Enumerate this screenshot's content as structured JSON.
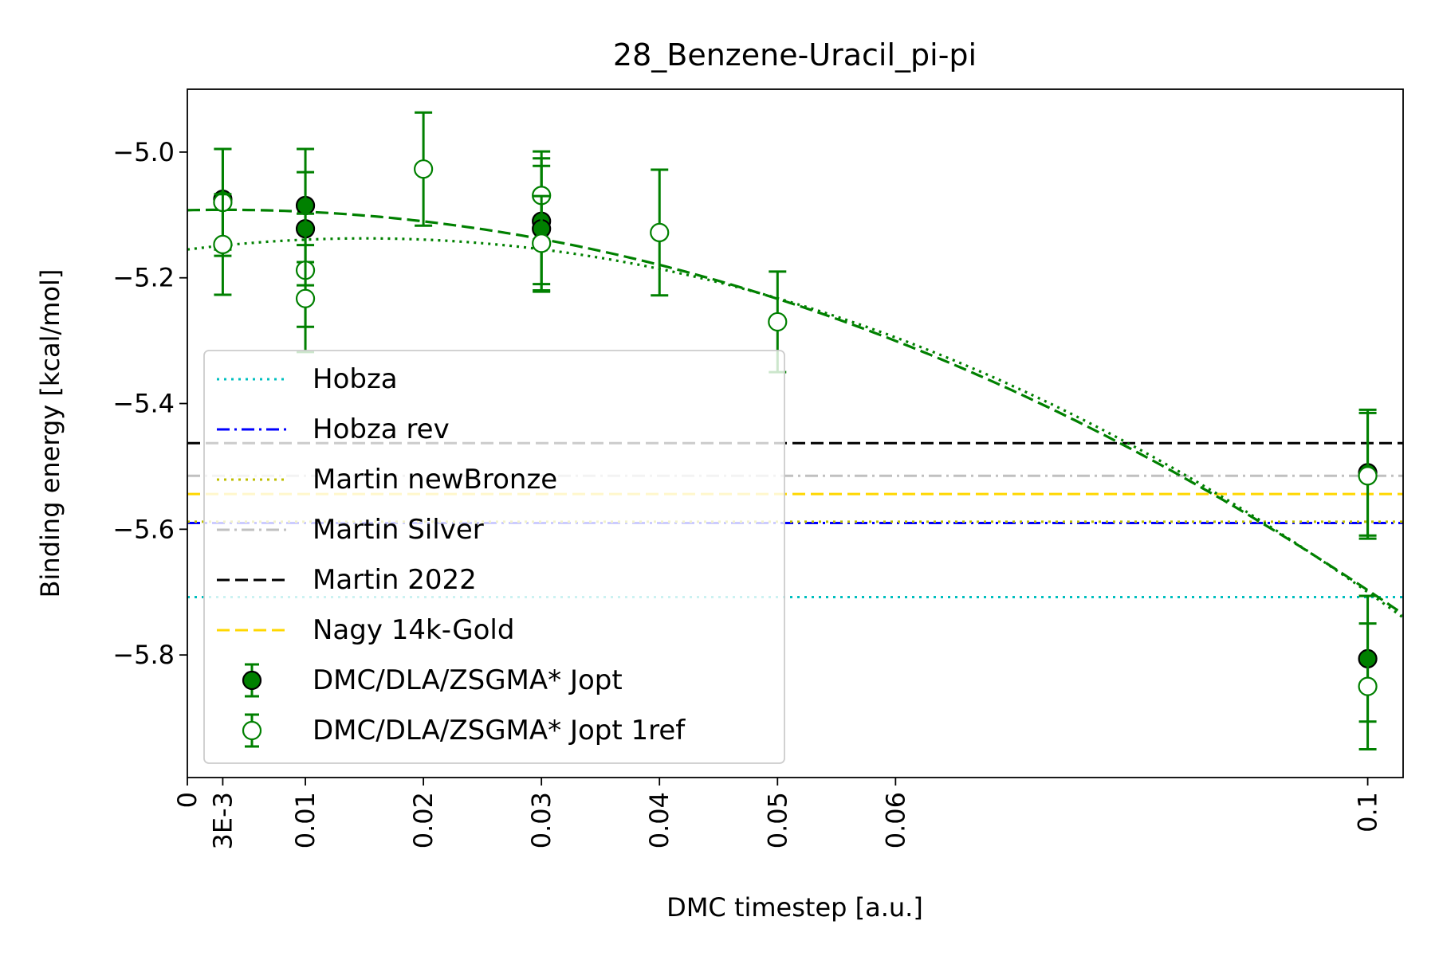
{
  "chart_data": {
    "type": "scatter",
    "title": "28_Benzene-Uracil_pi-pi",
    "xlabel": "DMC timestep [a.u.]",
    "ylabel": "Binding energy [kcal/mol]",
    "xlim": [
      0,
      0.103
    ],
    "ylim": [
      -5.995,
      -4.9
    ],
    "xticks": [
      {
        "value": 0,
        "label": "0"
      },
      {
        "value": 0.003,
        "label": "3E-3"
      },
      {
        "value": 0.01,
        "label": "0.01"
      },
      {
        "value": 0.02,
        "label": "0.02"
      },
      {
        "value": 0.03,
        "label": "0.03"
      },
      {
        "value": 0.04,
        "label": "0.04"
      },
      {
        "value": 0.05,
        "label": "0.05"
      },
      {
        "value": 0.06,
        "label": "0.06"
      },
      {
        "value": 0.1,
        "label": "0.1"
      }
    ],
    "yticks": [
      {
        "value": -5.0,
        "label": "−5.0"
      },
      {
        "value": -5.2,
        "label": "−5.2"
      },
      {
        "value": -5.4,
        "label": "−5.4"
      },
      {
        "value": -5.6,
        "label": "−5.6"
      },
      {
        "value": -5.8,
        "label": "−5.8"
      }
    ],
    "grid": false,
    "legend_position": "lower-left",
    "reference_lines": [
      {
        "name": "Hobza",
        "y": -5.708,
        "color": "#00bfbf",
        "style": "dotted"
      },
      {
        "name": "Hobza rev",
        "y": -5.59,
        "color": "#0000ff",
        "style": "dashdot"
      },
      {
        "name": "Martin newBronze",
        "y": -5.588,
        "color": "#bfbf00",
        "style": "dotted"
      },
      {
        "name": "Martin Silver",
        "y": -5.515,
        "color": "#c0c0c0",
        "style": "dashdot"
      },
      {
        "name": "Martin 2022",
        "y": -5.463,
        "color": "#000000",
        "style": "dashed"
      },
      {
        "name": "Nagy 14k-Gold",
        "y": -5.544,
        "color": "#ffd700",
        "style": "dashed"
      }
    ],
    "series": [
      {
        "name": "DMC/DLA/ZSGMA* Jopt",
        "marker": "filled-circle",
        "color": "#008000",
        "points": [
          {
            "x": 0.003,
            "y": -5.075,
            "err": 0.08
          },
          {
            "x": 0.01,
            "y": -5.085,
            "err": 0.09
          },
          {
            "x": 0.01,
            "y": -5.122,
            "err": 0.09
          },
          {
            "x": 0.03,
            "y": -5.11,
            "err": 0.1
          },
          {
            "x": 0.03,
            "y": -5.122,
            "err": 0.1
          },
          {
            "x": 0.1,
            "y": -5.51,
            "err": 0.1
          },
          {
            "x": 0.1,
            "y": -5.806,
            "err": 0.1
          }
        ]
      },
      {
        "name": "DMC/DLA/ZSGMA* Jopt 1ref",
        "marker": "open-circle",
        "color": "#008000",
        "points": [
          {
            "x": 0.003,
            "y": -5.08,
            "err": 0.085
          },
          {
            "x": 0.003,
            "y": -5.147,
            "err": 0.08
          },
          {
            "x": 0.01,
            "y": -5.188,
            "err": 0.09
          },
          {
            "x": 0.01,
            "y": -5.233,
            "err": 0.085
          },
          {
            "x": 0.02,
            "y": -5.027,
            "err": 0.09
          },
          {
            "x": 0.03,
            "y": -5.069,
            "err": 0.07
          },
          {
            "x": 0.03,
            "y": -5.145,
            "err": 0.075
          },
          {
            "x": 0.04,
            "y": -5.128,
            "err": 0.1
          },
          {
            "x": 0.05,
            "y": -5.27,
            "err": 0.08
          },
          {
            "x": 0.1,
            "y": -5.515,
            "err": 0.1
          },
          {
            "x": 0.1,
            "y": -5.85,
            "err": 0.1
          }
        ]
      }
    ],
    "fits": [
      {
        "series": "DMC/DLA/ZSGMA* Jopt",
        "style": "dashed",
        "color": "#008000",
        "coef": [
          -5.0925,
          0.406,
          -64.5
        ]
      },
      {
        "series": "DMC/DLA/ZSGMA* Jopt 1ref",
        "style": "dotted",
        "color": "#008000",
        "coef": [
          -5.155,
          2.35,
          -78.0
        ]
      }
    ]
  }
}
